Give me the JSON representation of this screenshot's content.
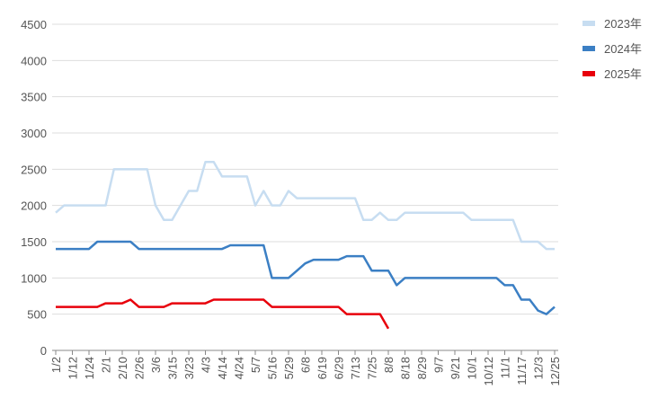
{
  "chart_data": {
    "type": "line",
    "categories": [
      "1/2",
      null,
      "1/12",
      null,
      "1/24",
      null,
      "2/1",
      null,
      "2/10",
      null,
      "2/26",
      null,
      "3/6",
      null,
      "3/15",
      null,
      "3/23",
      null,
      "4/3",
      null,
      "4/14",
      null,
      "4/24",
      null,
      "5/7",
      null,
      "5/16",
      null,
      "5/29",
      null,
      "6/8",
      null,
      "6/19",
      null,
      "6/29",
      null,
      "7/13",
      null,
      "7/25",
      null,
      "8/8",
      null,
      "8/18",
      null,
      "8/29",
      null,
      "9/7",
      null,
      "9/21",
      null,
      "10/1",
      null,
      "10/12",
      null,
      "11/1",
      null,
      "11/17",
      null,
      "12/3",
      null,
      "12/25"
    ],
    "series": [
      {
        "name": "2023年",
        "color": "#c7ddf1",
        "values": [
          1900,
          2000,
          2000,
          2000,
          2000,
          2000,
          2000,
          2500,
          2500,
          2500,
          2500,
          2500,
          2000,
          1800,
          1800,
          2000,
          2200,
          2200,
          2600,
          2600,
          2400,
          2400,
          2400,
          2400,
          2000,
          2200,
          2000,
          2000,
          2200,
          2100,
          2100,
          2100,
          2100,
          2100,
          2100,
          2100,
          2100,
          1800,
          1800,
          1900,
          1800,
          1800,
          1900,
          1900,
          1900,
          1900,
          1900,
          1900,
          1900,
          1900,
          1800,
          1800,
          1800,
          1800,
          1800,
          1800,
          1500,
          1500,
          1500,
          1400,
          1400
        ]
      },
      {
        "name": "2024年",
        "color": "#3b7fc4",
        "values": [
          1400,
          1400,
          1400,
          1400,
          1400,
          1500,
          1500,
          1500,
          1500,
          1500,
          1400,
          1400,
          1400,
          1400,
          1400,
          1400,
          1400,
          1400,
          1400,
          1400,
          1400,
          1450,
          1450,
          1450,
          1450,
          1450,
          1000,
          1000,
          1000,
          1100,
          1200,
          1250,
          1250,
          1250,
          1250,
          1300,
          1300,
          1300,
          1100,
          1100,
          1100,
          900,
          1000,
          1000,
          1000,
          1000,
          1000,
          1000,
          1000,
          1000,
          1000,
          1000,
          1000,
          1000,
          900,
          900,
          700,
          700,
          550,
          500,
          600
        ]
      },
      {
        "name": "2025年",
        "color": "#e8000b",
        "values": [
          600,
          600,
          600,
          600,
          600,
          600,
          650,
          650,
          650,
          700,
          600,
          600,
          600,
          600,
          650,
          650,
          650,
          650,
          650,
          700,
          700,
          700,
          700,
          700,
          700,
          700,
          600,
          600,
          600,
          600,
          600,
          600,
          600,
          600,
          600,
          500,
          500,
          500,
          500,
          500,
          300,
          null,
          null,
          null,
          null,
          null,
          null,
          null,
          null,
          null,
          null,
          null,
          null,
          null,
          null,
          null,
          null,
          null,
          null,
          null,
          null
        ]
      }
    ],
    "ylim": [
      0,
      4500
    ],
    "yticks": [
      0,
      500,
      1000,
      1500,
      2000,
      2500,
      3000,
      3500,
      4000,
      4500
    ],
    "grid": true,
    "legend": "top-right"
  }
}
